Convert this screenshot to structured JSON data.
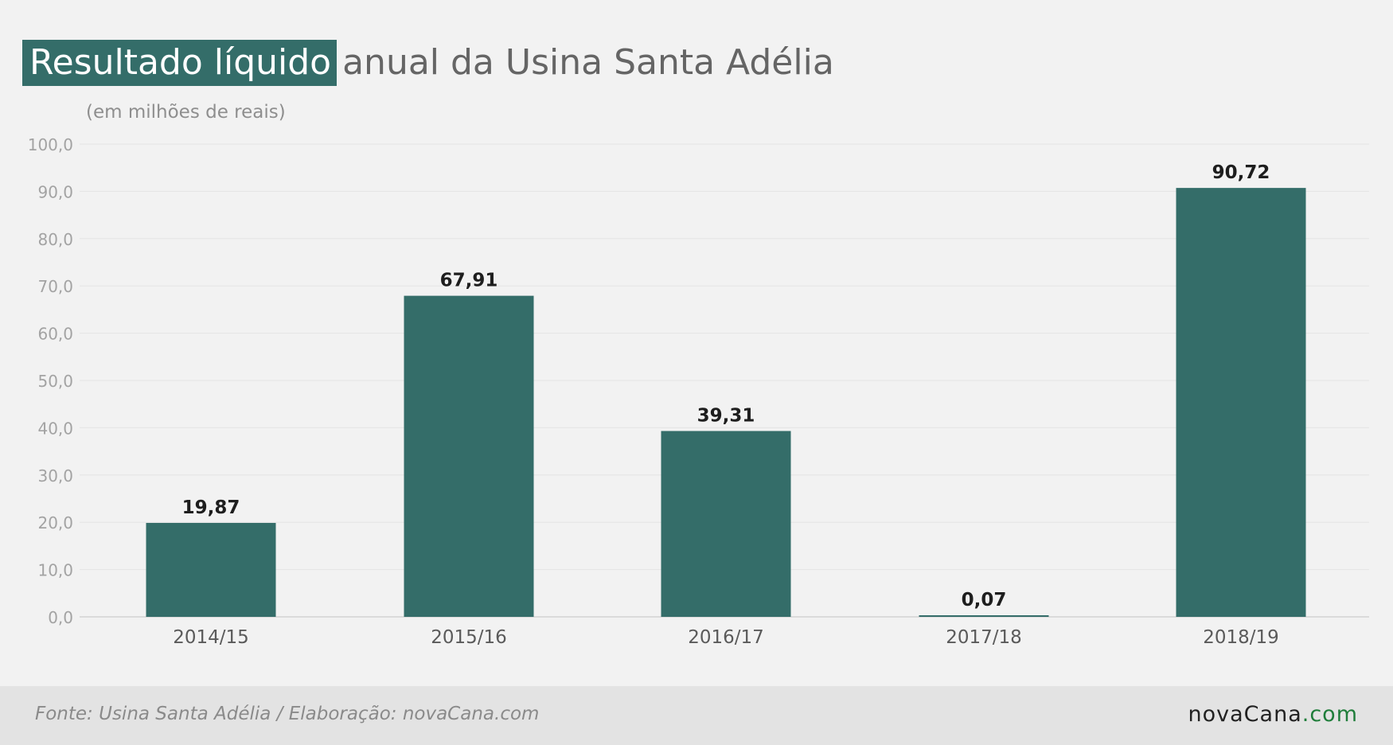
{
  "title": {
    "highlight": "Resultado líquido",
    "rest": "anual da Usina Santa Adélia"
  },
  "subtitle": "(em milhões de reais)",
  "footer": {
    "source": "Fonte: Usina Santa Adélia / Elaboração: novaCana.com",
    "logo_main": "novaCana",
    "logo_tld": ".com"
  },
  "colors": {
    "bar": "#346d69",
    "grid": "#e4e4e4",
    "axis_label": "#a3a3a3",
    "category_label": "#5a5a5a",
    "value_label": "#1e1e1e",
    "logo_tld": "#1f7d3a"
  },
  "chart_data": {
    "type": "bar",
    "categories": [
      "2014/15",
      "2015/16",
      "2016/17",
      "2017/18",
      "2018/19"
    ],
    "values": [
      19.87,
      67.91,
      39.31,
      0.07,
      90.72
    ],
    "value_labels": [
      "19,87",
      "67,91",
      "39,31",
      "0,07",
      "90,72"
    ],
    "ylim": [
      0,
      100
    ],
    "yticks": [
      0,
      10,
      20,
      30,
      40,
      50,
      60,
      70,
      80,
      90,
      100
    ],
    "ytick_labels": [
      "0,0",
      "10,0",
      "20,0",
      "30,0",
      "40,0",
      "50,0",
      "60,0",
      "70,0",
      "80,0",
      "90,0",
      "100,0"
    ],
    "ylabel": "(em milhões de reais)",
    "grid": true
  }
}
